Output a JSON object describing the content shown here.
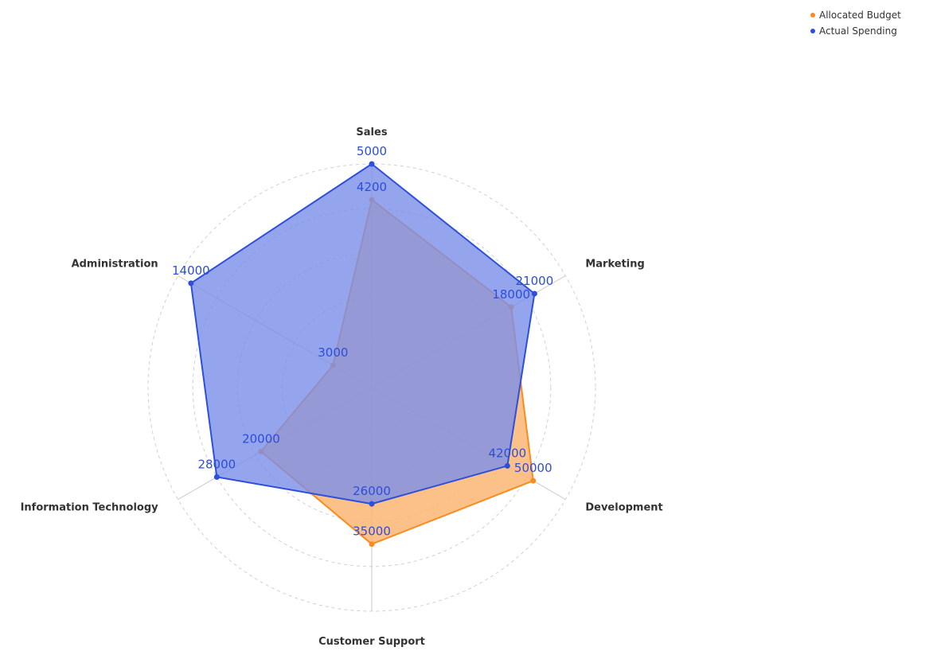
{
  "chart_data": {
    "type": "radar",
    "title": "",
    "axes": [
      {
        "name": "Sales",
        "max": 5000
      },
      {
        "name": "Marketing",
        "max": 25000
      },
      {
        "name": "Development",
        "max": 60000
      },
      {
        "name": "Customer Support",
        "max": 50000
      },
      {
        "name": "Information Technology",
        "max": 35000
      },
      {
        "name": "Administration",
        "max": 15000
      }
    ],
    "series": [
      {
        "name": "Allocated Budget",
        "values": [
          4200,
          18000,
          50000,
          35000,
          20000,
          3000
        ],
        "color": "#f98b1f",
        "fill": "#fbb574"
      },
      {
        "name": "Actual Spending",
        "values": [
          5000,
          21000,
          42000,
          26000,
          28000,
          14000
        ],
        "color": "#2d4fdb",
        "fill": "#7a8fe8"
      }
    ],
    "label_color": "#2c4ed8",
    "grid": "dashed-circles",
    "legend_position": "top-right"
  }
}
